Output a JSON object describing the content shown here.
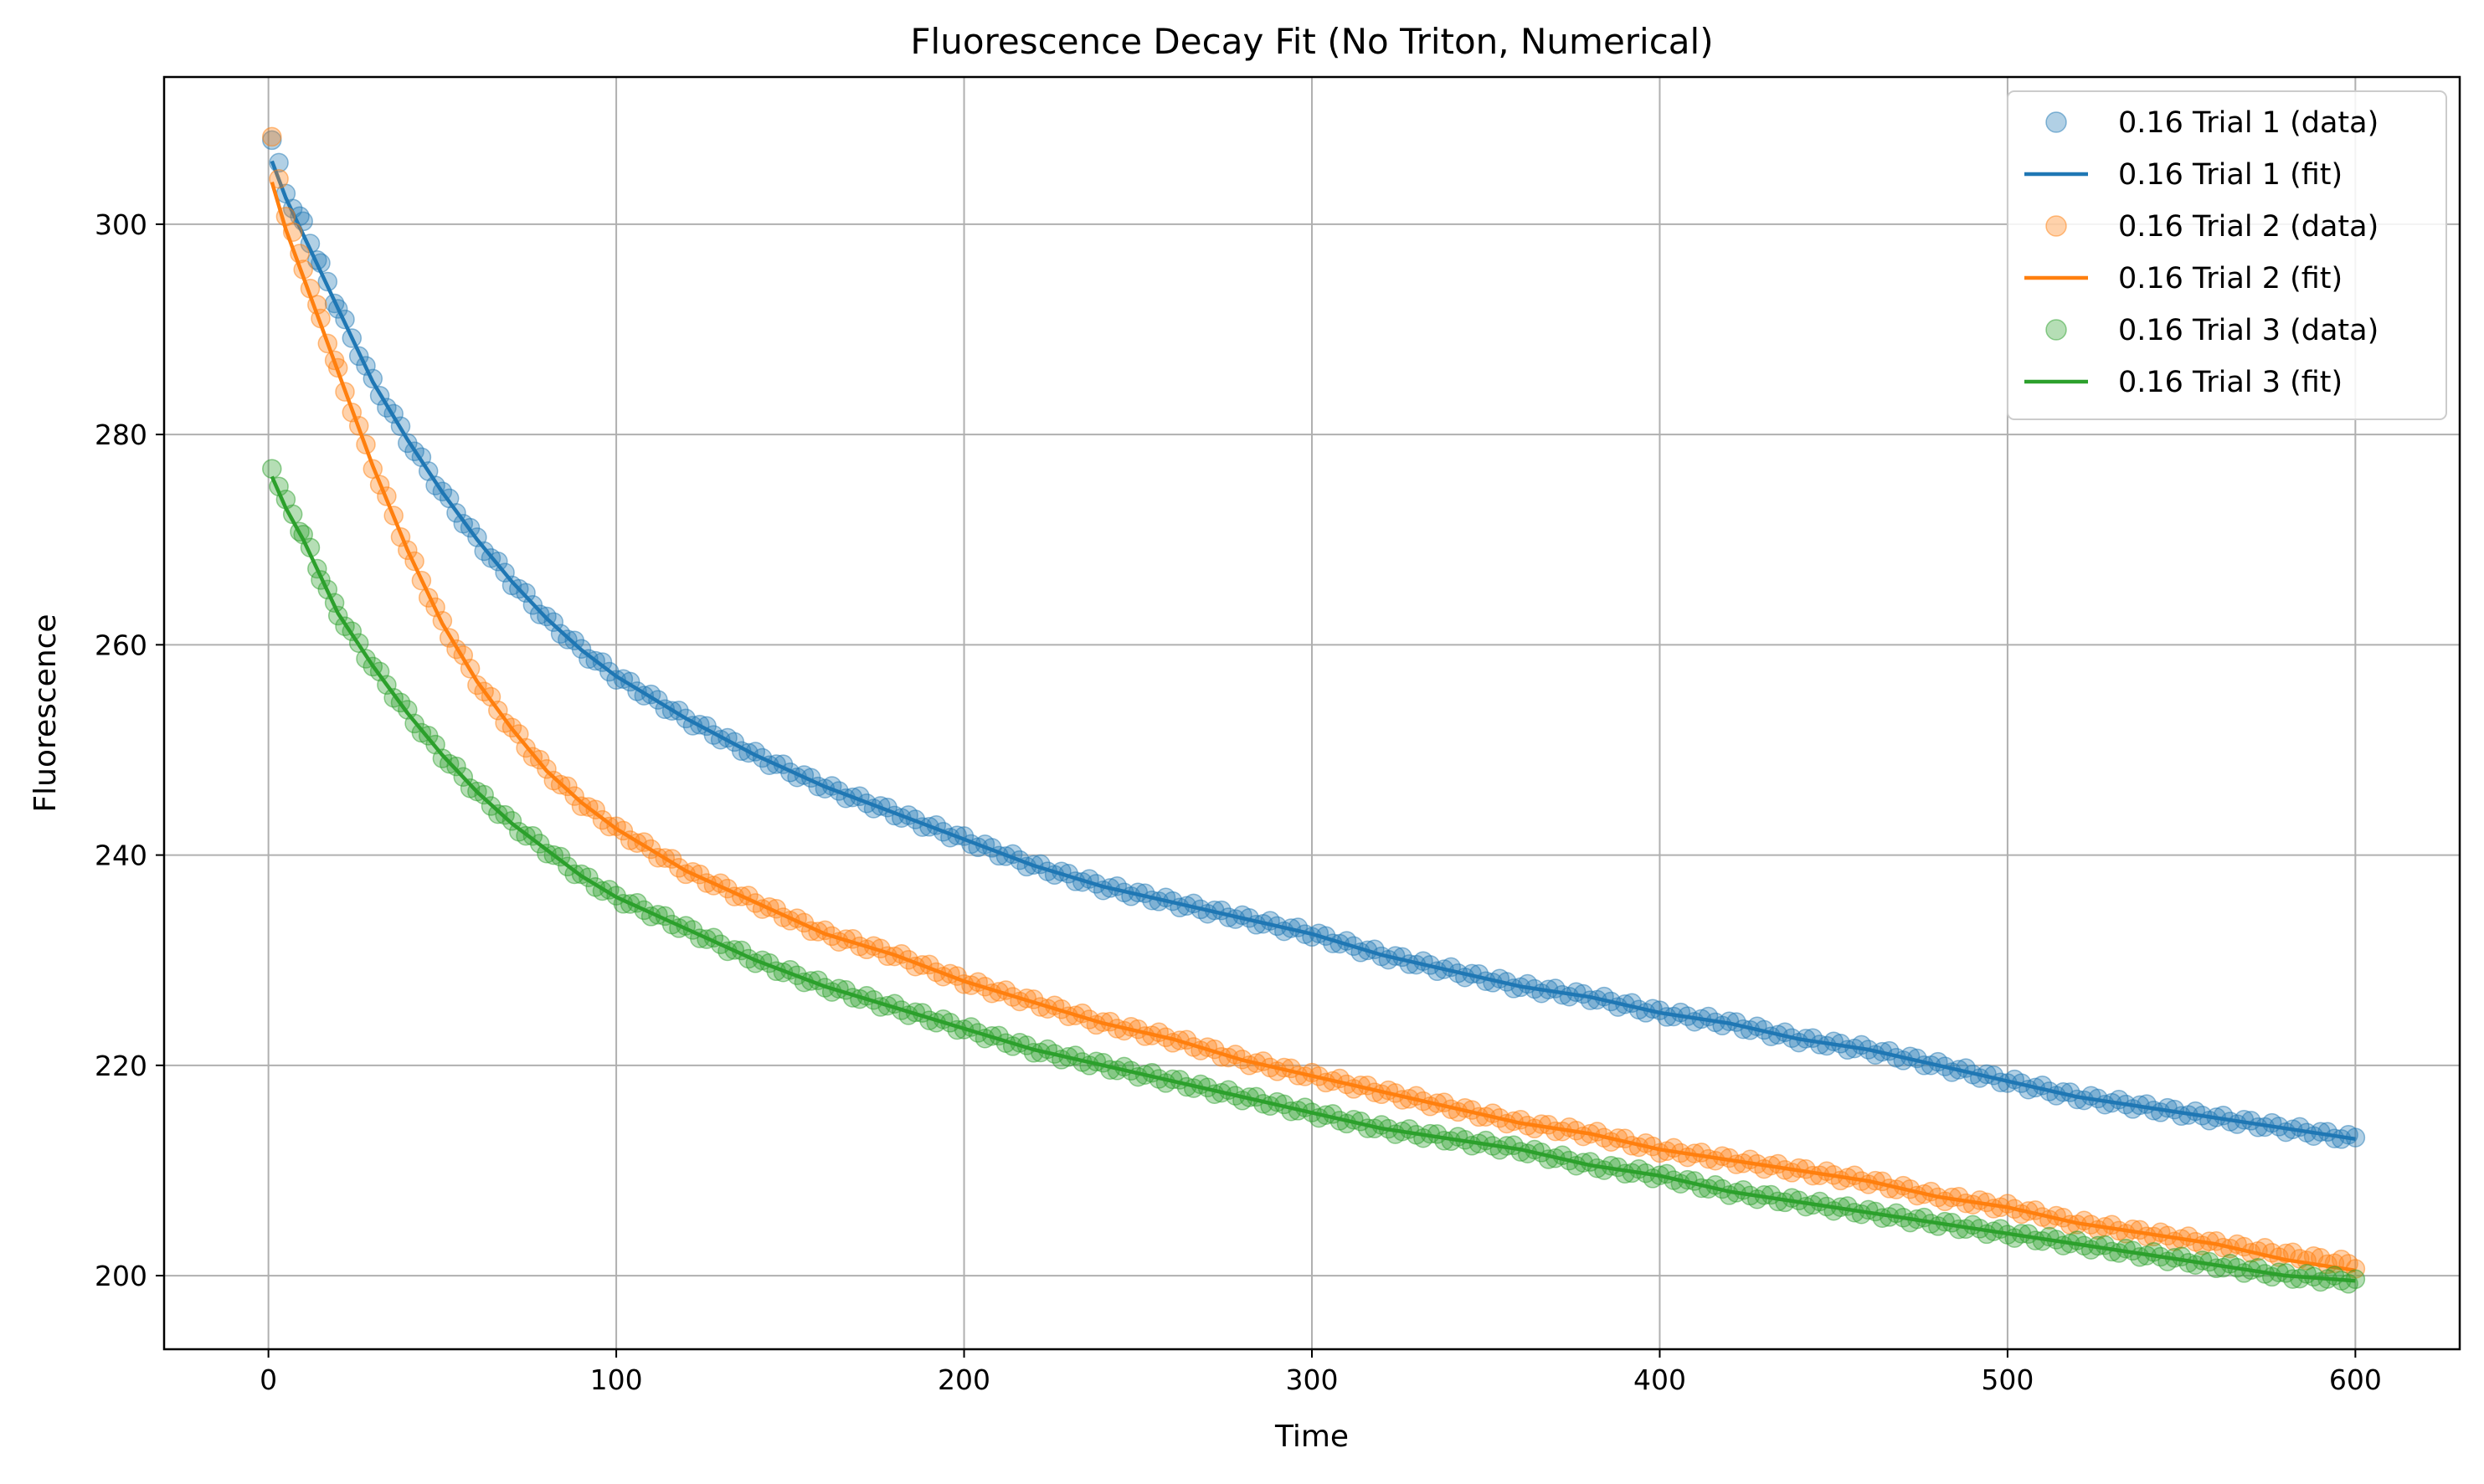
{
  "chart_data": {
    "type": "scatter",
    "title": "Fluorescence Decay Fit (No Triton, Numerical)",
    "xlabel": "Time",
    "ylabel": "Fluorescence",
    "xlim": [
      -30,
      630
    ],
    "ylim": [
      193,
      314
    ],
    "xticks": [
      0,
      100,
      200,
      300,
      400,
      500,
      600
    ],
    "yticks": [
      200,
      220,
      240,
      260,
      280,
      300
    ],
    "grid": true,
    "legend_position": "top-right",
    "series": [
      {
        "name": "0.16 Trial 1 (data)",
        "kind": "scatter",
        "color": "#1f77b4",
        "x": [
          1,
          5,
          10,
          15,
          20,
          30,
          40,
          50,
          60,
          70,
          80,
          90,
          100,
          120,
          140,
          160,
          180,
          200,
          220,
          240,
          260,
          280,
          300,
          320,
          340,
          360,
          380,
          400,
          420,
          440,
          460,
          480,
          500,
          520,
          540,
          560,
          580,
          600
        ],
        "y": [
          308,
          303,
          300,
          296,
          292,
          285,
          279.5,
          274.5,
          270,
          266,
          262.5,
          259.5,
          257,
          253,
          249.5,
          246.5,
          244,
          241.5,
          239,
          237,
          235.5,
          234,
          232.5,
          230.5,
          229,
          227.5,
          226.5,
          225,
          224,
          222.5,
          221.5,
          220,
          218.5,
          217,
          216,
          215,
          214,
          213
        ]
      },
      {
        "name": "0.16 Trial 1 (fit)",
        "kind": "line",
        "color": "#1f77b4",
        "x": [
          1,
          5,
          10,
          15,
          20,
          30,
          40,
          50,
          60,
          70,
          80,
          90,
          100,
          120,
          140,
          160,
          180,
          200,
          220,
          240,
          260,
          280,
          300,
          320,
          340,
          360,
          380,
          400,
          420,
          440,
          460,
          480,
          500,
          520,
          540,
          560,
          580,
          600
        ],
        "y": [
          306,
          302.5,
          299,
          295.5,
          292,
          285,
          279.5,
          274.5,
          270,
          266,
          262.5,
          259.5,
          257,
          253,
          249.5,
          246.5,
          244,
          241.5,
          239,
          237,
          235.5,
          234,
          232.5,
          230.5,
          229,
          227.5,
          226.5,
          225,
          224,
          222.5,
          221.5,
          220,
          218.5,
          217,
          216,
          215,
          214,
          213
        ]
      },
      {
        "name": "0.16 Trial 2 (data)",
        "kind": "scatter",
        "color": "#ff7f0e",
        "x": [
          1,
          5,
          10,
          15,
          20,
          30,
          40,
          50,
          60,
          70,
          80,
          90,
          100,
          120,
          140,
          160,
          180,
          200,
          220,
          240,
          260,
          280,
          300,
          320,
          340,
          360,
          380,
          400,
          420,
          440,
          460,
          480,
          500,
          520,
          540,
          560,
          580,
          600
        ],
        "y": [
          308,
          301,
          296,
          291,
          286,
          277,
          269,
          262,
          256.5,
          252,
          248,
          245,
          242.5,
          238.5,
          235.5,
          232.5,
          230.5,
          228,
          226,
          224,
          222.5,
          220.5,
          219,
          217.5,
          216,
          214.5,
          213.5,
          212,
          211,
          210,
          209,
          207.5,
          206.5,
          205,
          204,
          203,
          202,
          201
        ]
      },
      {
        "name": "0.16 Trial 2 (fit)",
        "kind": "line",
        "color": "#ff7f0e",
        "x": [
          1,
          5,
          10,
          15,
          20,
          30,
          40,
          50,
          60,
          70,
          80,
          90,
          100,
          120,
          140,
          160,
          180,
          200,
          220,
          240,
          260,
          280,
          300,
          320,
          340,
          360,
          380,
          400,
          420,
          440,
          460,
          480,
          500,
          520,
          540,
          560,
          580,
          600
        ],
        "y": [
          304,
          299.5,
          295,
          290.5,
          286,
          277,
          269,
          262,
          256.5,
          252,
          248,
          245,
          242.5,
          238.5,
          235.5,
          232.5,
          230.5,
          228,
          226,
          224,
          222.5,
          220.5,
          219,
          217.5,
          216,
          214.5,
          213.5,
          212,
          211,
          210,
          209,
          207.5,
          206.5,
          205,
          204,
          203,
          201.5,
          200.5
        ]
      },
      {
        "name": "0.16 Trial 3 (data)",
        "kind": "scatter",
        "color": "#2ca02c",
        "x": [
          1,
          5,
          10,
          15,
          20,
          30,
          40,
          50,
          60,
          70,
          80,
          90,
          100,
          120,
          140,
          160,
          180,
          200,
          220,
          240,
          260,
          280,
          300,
          320,
          340,
          360,
          380,
          400,
          420,
          440,
          460,
          480,
          500,
          520,
          540,
          560,
          580,
          600
        ],
        "y": [
          277,
          273.5,
          270.5,
          266.5,
          263,
          258,
          253.5,
          249.5,
          246,
          243,
          240.5,
          238,
          236,
          233,
          230,
          227.5,
          225.5,
          223.5,
          221.5,
          220,
          218.5,
          217,
          215.5,
          214,
          213,
          212,
          210.5,
          209.5,
          208,
          207,
          206,
          205,
          204,
          203,
          202,
          201,
          200,
          199.5
        ]
      },
      {
        "name": "0.16 Trial 3 (fit)",
        "kind": "line",
        "color": "#2ca02c",
        "x": [
          1,
          5,
          10,
          15,
          20,
          30,
          40,
          50,
          60,
          70,
          80,
          90,
          100,
          120,
          140,
          160,
          180,
          200,
          220,
          240,
          260,
          280,
          300,
          320,
          340,
          360,
          380,
          400,
          420,
          440,
          460,
          480,
          500,
          520,
          540,
          560,
          580,
          600
        ],
        "y": [
          276,
          273,
          270,
          266.5,
          263,
          258,
          253.5,
          249.5,
          246,
          243,
          240.5,
          238,
          236,
          233,
          230,
          227.5,
          225.5,
          223.5,
          221.5,
          220,
          218.5,
          217,
          215.5,
          214,
          213,
          212,
          210.5,
          209.5,
          208,
          207,
          206,
          205,
          204,
          203,
          202,
          201,
          200,
          199.5
        ]
      }
    ]
  }
}
